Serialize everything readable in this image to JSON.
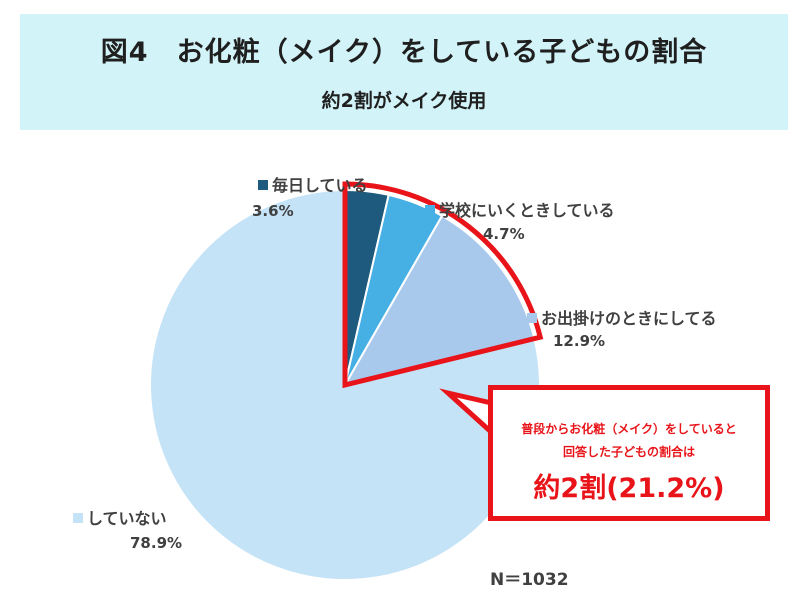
{
  "header": {
    "title": "図4　お化粧（メイク）をしている子どもの割合",
    "subtitle": "約2割がメイク使用"
  },
  "chart_data": {
    "type": "pie",
    "slices": [
      {
        "label": "毎日している",
        "value": 3.6,
        "display": "3.6%",
        "color": "#1e5a7d"
      },
      {
        "label": "学校にいくときしている",
        "value": 4.7,
        "display": "4.7%",
        "color": "#46afe3"
      },
      {
        "label": "お出掛けのときにしてる",
        "value": 12.9,
        "display": "12.9%",
        "color": "#a8c8ec"
      },
      {
        "label": "していない",
        "value": 78.9,
        "display": "78.9%",
        "color": "#c5e3f6"
      }
    ],
    "highlight_color": "#e8141a"
  },
  "callout": {
    "line1": "普段からお化粧（メイク）をしていると",
    "line2": "回答した子どもの割合は",
    "big": "約2割(21.2%)"
  },
  "n_label": "N＝1032"
}
